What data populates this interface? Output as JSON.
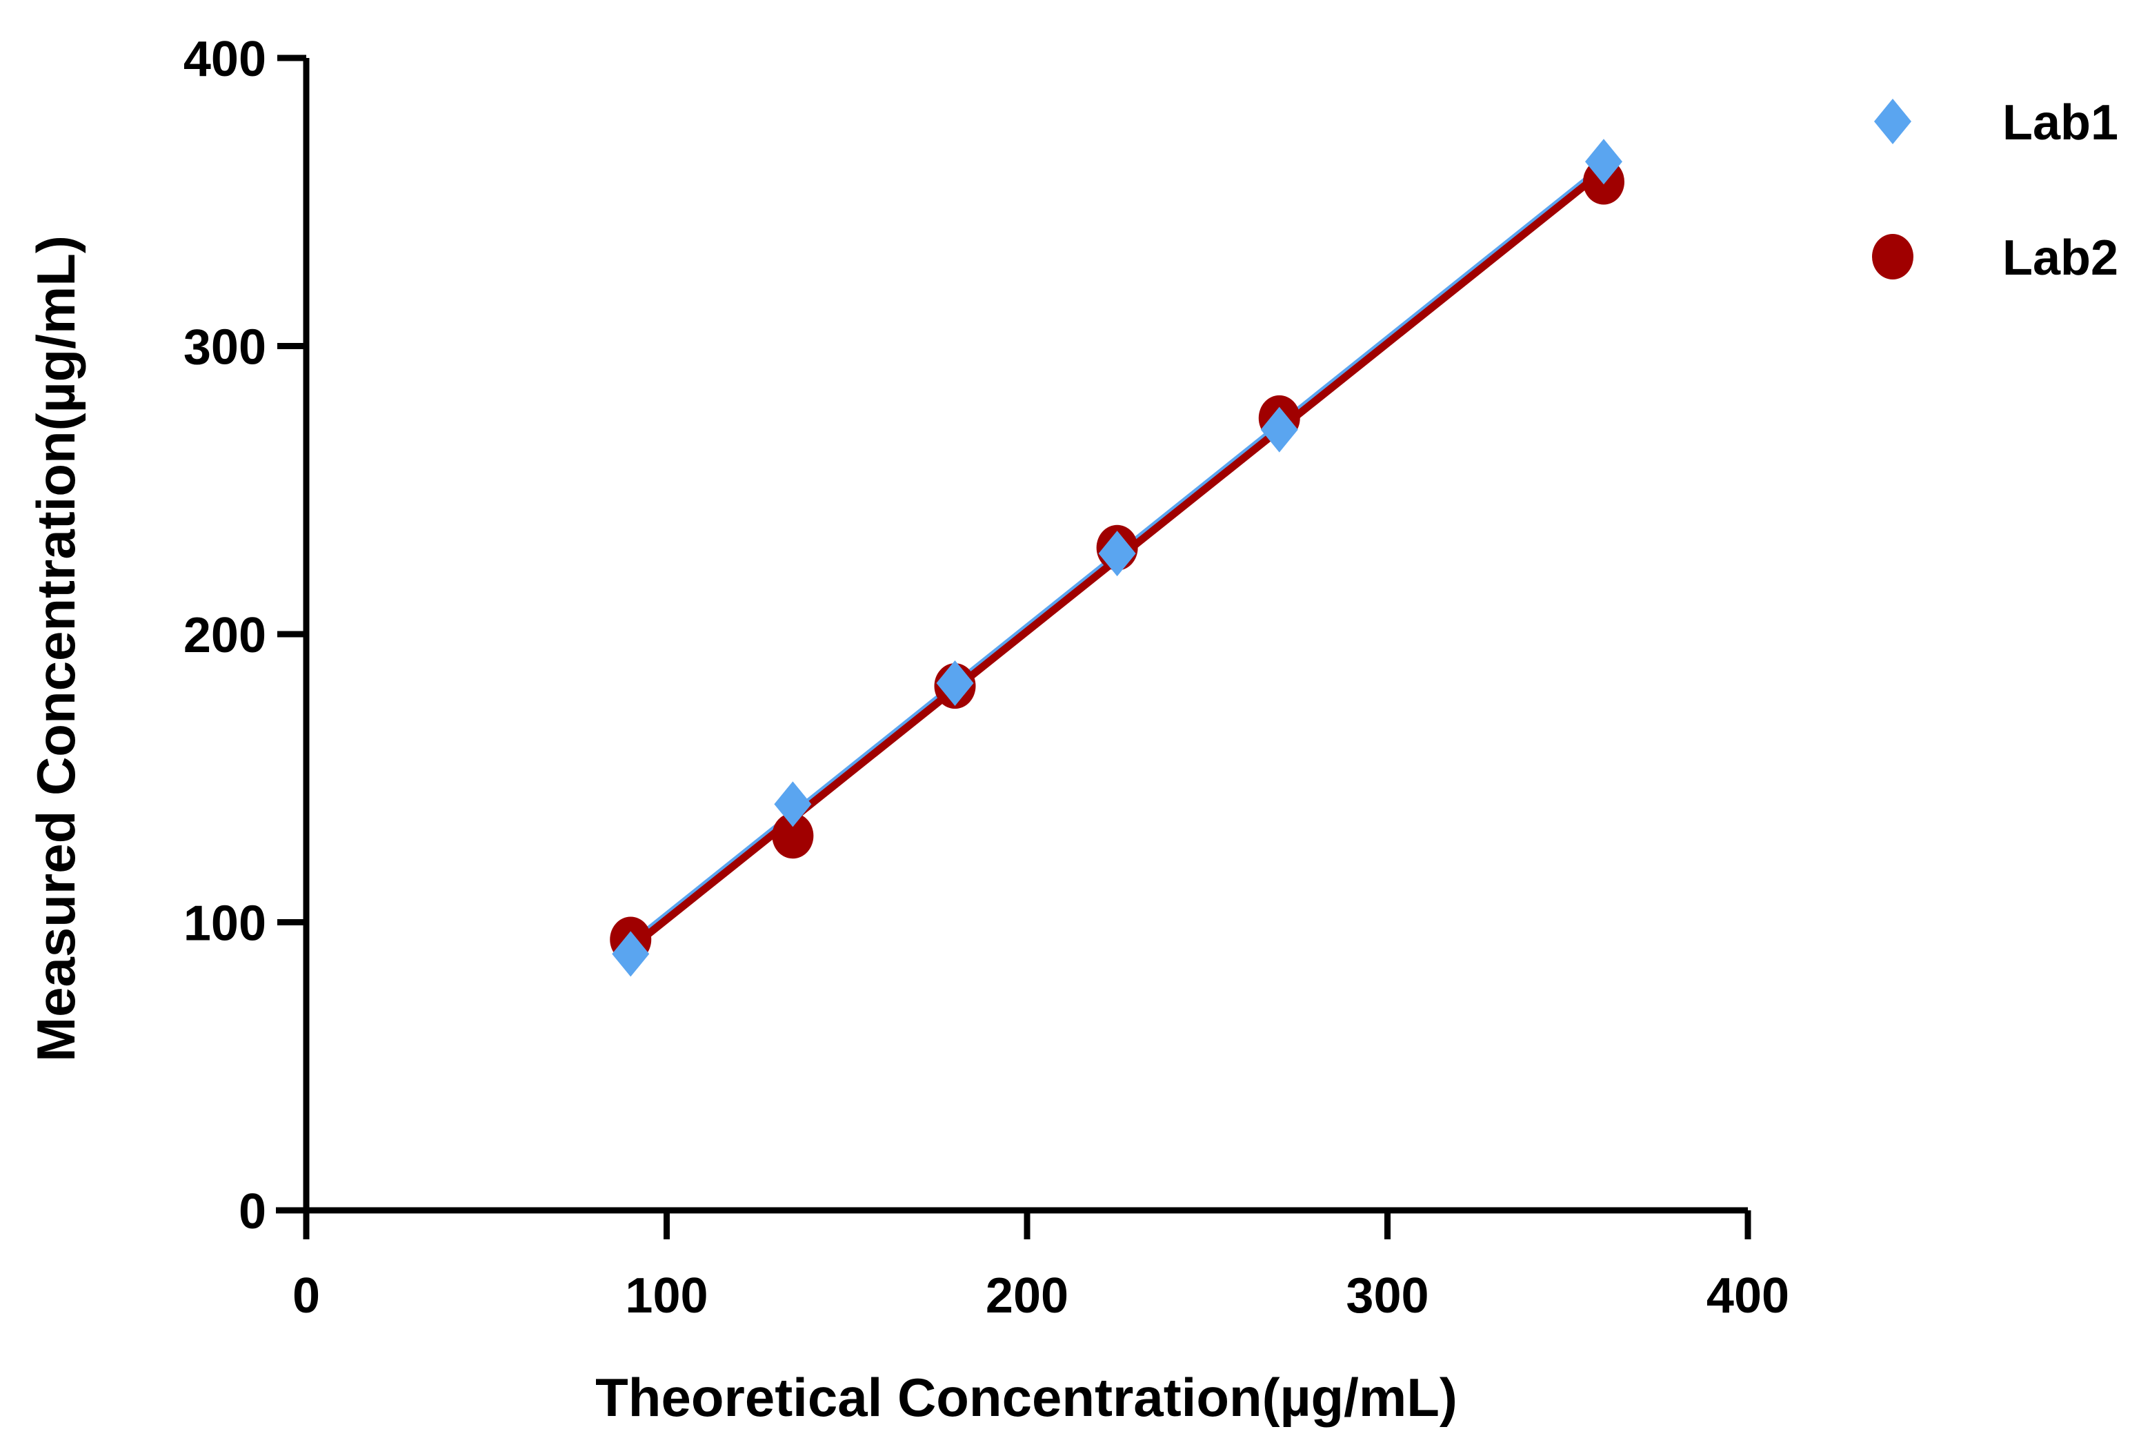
{
  "chart_data": {
    "type": "scatter",
    "title": "",
    "xlabel": "Theoretical Concentration(µg/mL)",
    "ylabel": "Measured Concentration(µg/mL)",
    "xlim": [
      0,
      400
    ],
    "ylim": [
      0,
      400
    ],
    "x_ticks": [
      "0",
      "100",
      "200",
      "300",
      "400"
    ],
    "y_ticks": [
      "0",
      "100",
      "200",
      "300",
      "400"
    ],
    "grid": false,
    "legend_position": "top-right",
    "series": [
      {
        "name": "Lab1",
        "marker": "diamond",
        "color": "#5aa5f0",
        "x": [
          90,
          135,
          180,
          225,
          270,
          360
        ],
        "y": [
          89,
          141,
          183,
          228,
          271,
          364
        ],
        "fit_line": [
          [
            90,
            92
          ],
          [
            360,
            362
          ]
        ]
      },
      {
        "name": "Lab2",
        "marker": "circle",
        "color": "#a00000",
        "x": [
          90,
          135,
          180,
          225,
          270,
          360
        ],
        "y": [
          94,
          130,
          182,
          230,
          275,
          357
        ],
        "fit_line": [
          [
            90,
            91
          ],
          [
            360,
            361
          ]
        ]
      }
    ]
  }
}
